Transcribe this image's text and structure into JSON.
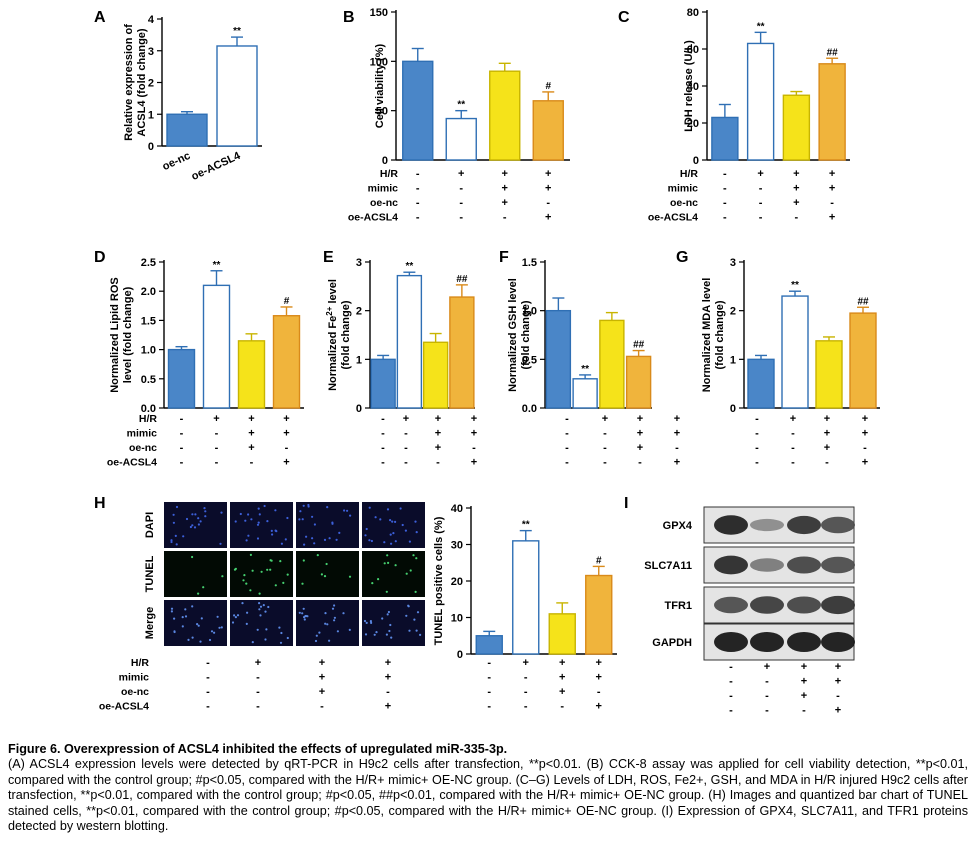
{
  "figure": {
    "panels": [
      {
        "key": "A",
        "label": "A"
      },
      {
        "key": "B",
        "label": "B"
      },
      {
        "key": "C",
        "label": "C"
      },
      {
        "key": "D",
        "label": "D"
      },
      {
        "key": "E",
        "label": "E"
      },
      {
        "key": "F",
        "label": "F"
      },
      {
        "key": "G",
        "label": "G"
      },
      {
        "key": "H",
        "label": "H"
      },
      {
        "key": "I",
        "label": "I"
      }
    ],
    "conditions": {
      "row_labels": [
        "H/R",
        "mimic",
        "oe-nc",
        "oe-ACSL4"
      ],
      "columns": [
        [
          "-",
          "-",
          "-",
          "-"
        ],
        [
          "+",
          "-",
          "-",
          "-"
        ],
        [
          "+",
          "+",
          "+",
          "-"
        ],
        [
          "+",
          "+",
          "-",
          "+"
        ]
      ]
    },
    "colors": {
      "blue": "#4a86c8",
      "white": "#ffffff",
      "yellow": "#f5e31a",
      "orange": "#f0b43c",
      "edge_blue": "#2f6fb4",
      "edge_yellow": "#c8b400",
      "edge_orange": "#d98a1a"
    },
    "microscopy": {
      "row_labels": [
        "DAPI",
        "TUNEL",
        "Merge"
      ]
    },
    "western": {
      "proteins": [
        "GPX4",
        "SLC7A11",
        "TFR1",
        "GAPDH"
      ],
      "band_intensity": [
        [
          0.95,
          0.35,
          0.85,
          0.7
        ],
        [
          0.9,
          0.45,
          0.75,
          0.7
        ],
        [
          0.7,
          0.8,
          0.75,
          0.85
        ],
        [
          1.0,
          1.0,
          1.0,
          1.0
        ]
      ]
    }
  },
  "chart_data": [
    {
      "panel": "A",
      "type": "bar",
      "categories": [
        "oe-nc",
        "oe-ACSL4"
      ],
      "values": [
        1.0,
        3.15
      ],
      "errors": [
        0.08,
        0.28
      ],
      "annotations": [
        "",
        "**"
      ],
      "ylabel": "Relative expression of ACSL4 (fold change)",
      "ylim": [
        0,
        4
      ],
      "yticks": [
        0,
        1,
        2,
        3,
        4
      ]
    },
    {
      "panel": "B",
      "type": "bar",
      "values": [
        100,
        42,
        90,
        60
      ],
      "errors": [
        13,
        8,
        8,
        9
      ],
      "annotations": [
        "",
        "**",
        "",
        "#"
      ],
      "ylabel": "Cell viability (%)",
      "ylim": [
        0,
        150
      ],
      "yticks": [
        0,
        50,
        100,
        150
      ]
    },
    {
      "panel": "C",
      "type": "bar",
      "values": [
        23,
        63,
        35,
        52
      ],
      "errors": [
        7,
        6,
        2,
        3
      ],
      "annotations": [
        "",
        "**",
        "",
        "##"
      ],
      "ylabel": "LDH release (U/L)",
      "ylim": [
        0,
        80
      ],
      "yticks": [
        0,
        20,
        40,
        60,
        80
      ]
    },
    {
      "panel": "D",
      "type": "bar",
      "values": [
        1.0,
        2.1,
        1.15,
        1.58
      ],
      "errors": [
        0.05,
        0.25,
        0.12,
        0.15
      ],
      "annotations": [
        "",
        "**",
        "",
        "#"
      ],
      "ylabel_lines": [
        "Normalized Lipid ROS",
        "level (fold change)"
      ],
      "ylim": [
        0,
        2.5
      ],
      "yticks": [
        0.0,
        0.5,
        1.0,
        1.5,
        2.0,
        2.5
      ]
    },
    {
      "panel": "E",
      "type": "bar",
      "values": [
        1.0,
        2.72,
        1.35,
        2.28
      ],
      "errors": [
        0.08,
        0.07,
        0.18,
        0.25
      ],
      "annotations": [
        "",
        "**",
        "",
        "##"
      ],
      "ylabel_lines": [
        "Normalized Fe2+ level",
        "(fold change)"
      ],
      "ylim": [
        0,
        3
      ],
      "yticks": [
        0,
        1,
        2,
        3
      ]
    },
    {
      "panel": "F",
      "type": "bar",
      "values": [
        1.0,
        0.3,
        0.9,
        0.53
      ],
      "errors": [
        0.13,
        0.04,
        0.08,
        0.06
      ],
      "annotations": [
        "",
        "**",
        "",
        "##"
      ],
      "ylabel_lines": [
        "Normalized GSH level",
        "(fold change)"
      ],
      "ylim": [
        0,
        1.5
      ],
      "yticks": [
        0.0,
        0.5,
        1.0,
        1.5
      ]
    },
    {
      "panel": "G",
      "type": "bar",
      "values": [
        1.0,
        2.3,
        1.38,
        1.95
      ],
      "errors": [
        0.08,
        0.1,
        0.08,
        0.12
      ],
      "annotations": [
        "",
        "**",
        "",
        "##"
      ],
      "ylabel_lines": [
        "Normalized MDA level",
        "(fold change)"
      ],
      "ylim": [
        0,
        3
      ],
      "yticks": [
        0,
        1,
        2,
        3
      ]
    },
    {
      "panel": "H",
      "type": "bar",
      "values": [
        5,
        31,
        11,
        21.5
      ],
      "errors": [
        1.2,
        2.8,
        3,
        2.5
      ],
      "annotations": [
        "",
        "**",
        "",
        "#"
      ],
      "ylabel": "TUNEL positive cells (%)",
      "ylim": [
        0,
        40
      ],
      "yticks": [
        0,
        10,
        20,
        30,
        40
      ]
    }
  ],
  "caption": {
    "title": "Figure 6. Overexpression of ACSL4 inhibited the effects of upregulated miR-335-3p.",
    "body": "(A) ACSL4 expression levels were detected by qRT-PCR in H9c2 cells after transfection, **p<0.01. (B) CCK-8 assay was applied for cell viability detection, **p<0.01, compared with the control group; #p<0.05, compared with the H/R+ mimic+ OE-NC group. (C–G) Levels of LDH, ROS, Fe2+, GSH, and MDA in H/R injured H9c2 cells after transfection, **p<0.01, compared with the control group; #p<0.05, ##p<0.01, compared with the H/R+ mimic+ OE-NC group. (H) Images and quantized bar chart of TUNEL stained cells, **p<0.01, compared with the control group; #p<0.05, compared with the H/R+ mimic+ OE-NC group. (I) Expression of GPX4, SLC7A11, and TFR1 proteins detected by western blotting."
  }
}
